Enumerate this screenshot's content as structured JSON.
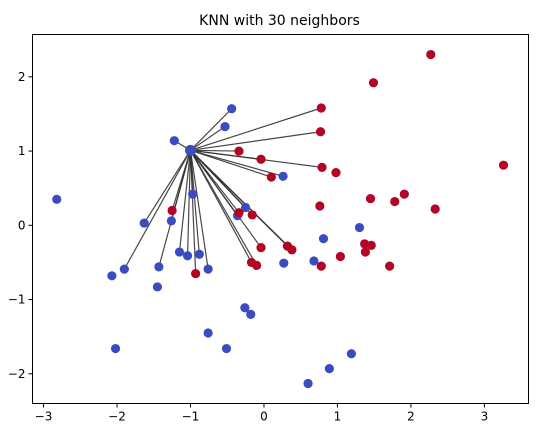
{
  "chart_data": {
    "type": "scatter",
    "title": "KNN with 30 neighbors",
    "xlabel": "",
    "ylabel": "",
    "xlim": [
      -3.15,
      3.6
    ],
    "ylim": [
      -2.4,
      2.57
    ],
    "xticks": [
      -3,
      -2,
      -1,
      0,
      1,
      2,
      3
    ],
    "yticks": [
      -2,
      -1,
      0,
      1,
      2
    ],
    "xtick_labels": [
      "−3",
      "−2",
      "−1",
      "0",
      "1",
      "2",
      "3"
    ],
    "ytick_labels": [
      "−2",
      "−1",
      "0",
      "1",
      "2"
    ],
    "grid": false,
    "colors": {
      "class_0": "#3a4cc0",
      "class_1": "#b40426",
      "line": "#333333"
    },
    "query_point": {
      "x": -1.0,
      "y": 1.01,
      "class": "class_0"
    },
    "points": [
      {
        "x": -2.82,
        "y": 0.35,
        "c": 0
      },
      {
        "x": -2.07,
        "y": -0.68,
        "c": 0
      },
      {
        "x": -1.9,
        "y": -0.59,
        "c": 0
      },
      {
        "x": -2.02,
        "y": -1.66,
        "c": 0
      },
      {
        "x": -1.63,
        "y": 0.03,
        "c": 0
      },
      {
        "x": -1.43,
        "y": -0.56,
        "c": 0
      },
      {
        "x": -1.45,
        "y": -0.83,
        "c": 0
      },
      {
        "x": -1.22,
        "y": 1.14,
        "c": 0
      },
      {
        "x": -1.26,
        "y": 0.06,
        "c": 0
      },
      {
        "x": -1.15,
        "y": -0.36,
        "c": 0
      },
      {
        "x": -1.04,
        "y": -0.41,
        "c": 0
      },
      {
        "x": -0.97,
        "y": 0.42,
        "c": 0
      },
      {
        "x": -0.88,
        "y": -0.39,
        "c": 0
      },
      {
        "x": -0.76,
        "y": -0.59,
        "c": 0
      },
      {
        "x": -0.76,
        "y": -1.45,
        "c": 0
      },
      {
        "x": -0.53,
        "y": 1.33,
        "c": 0
      },
      {
        "x": -0.44,
        "y": 1.57,
        "c": 0
      },
      {
        "x": -0.51,
        "y": -1.66,
        "c": 0
      },
      {
        "x": -0.36,
        "y": 0.13,
        "c": 0
      },
      {
        "x": -0.25,
        "y": 0.24,
        "c": 0
      },
      {
        "x": -0.26,
        "y": -1.11,
        "c": 0
      },
      {
        "x": -0.18,
        "y": -1.2,
        "c": 0
      },
      {
        "x": 0.26,
        "y": 0.66,
        "c": 0
      },
      {
        "x": 0.27,
        "y": -0.51,
        "c": 0
      },
      {
        "x": 0.68,
        "y": -0.48,
        "c": 0
      },
      {
        "x": 0.81,
        "y": -0.18,
        "c": 0
      },
      {
        "x": 0.6,
        "y": -2.13,
        "c": 0
      },
      {
        "x": 0.89,
        "y": -1.93,
        "c": 0
      },
      {
        "x": 1.19,
        "y": -1.73,
        "c": 0
      },
      {
        "x": 1.3,
        "y": -0.03,
        "c": 0
      },
      {
        "x": -1.25,
        "y": 0.2,
        "c": 1
      },
      {
        "x": -0.93,
        "y": -0.65,
        "c": 1
      },
      {
        "x": -0.34,
        "y": 1.0,
        "c": 1
      },
      {
        "x": -0.34,
        "y": 0.17,
        "c": 1
      },
      {
        "x": -0.16,
        "y": 0.14,
        "c": 1
      },
      {
        "x": -0.04,
        "y": 0.89,
        "c": 1
      },
      {
        "x": 0.1,
        "y": 0.65,
        "c": 1
      },
      {
        "x": -0.04,
        "y": -0.3,
        "c": 1
      },
      {
        "x": -0.17,
        "y": -0.5,
        "c": 1
      },
      {
        "x": -0.1,
        "y": -0.54,
        "c": 1
      },
      {
        "x": 0.32,
        "y": -0.28,
        "c": 1
      },
      {
        "x": 0.38,
        "y": -0.33,
        "c": 1
      },
      {
        "x": 0.78,
        "y": 1.58,
        "c": 1
      },
      {
        "x": 0.77,
        "y": 1.26,
        "c": 1
      },
      {
        "x": 0.79,
        "y": 0.78,
        "c": 1
      },
      {
        "x": 0.98,
        "y": 0.71,
        "c": 1
      },
      {
        "x": 0.76,
        "y": 0.26,
        "c": 1
      },
      {
        "x": 0.78,
        "y": -0.55,
        "c": 1
      },
      {
        "x": 1.04,
        "y": -0.42,
        "c": 1
      },
      {
        "x": 1.37,
        "y": -0.25,
        "c": 1
      },
      {
        "x": 1.38,
        "y": -0.36,
        "c": 1
      },
      {
        "x": 1.46,
        "y": -0.27,
        "c": 1
      },
      {
        "x": 1.45,
        "y": 0.36,
        "c": 1
      },
      {
        "x": 1.49,
        "y": 1.92,
        "c": 1
      },
      {
        "x": 1.71,
        "y": -0.55,
        "c": 1
      },
      {
        "x": 1.78,
        "y": 0.32,
        "c": 1
      },
      {
        "x": 1.91,
        "y": 0.42,
        "c": 1
      },
      {
        "x": 2.27,
        "y": 2.3,
        "c": 1
      },
      {
        "x": 2.33,
        "y": 0.22,
        "c": 1
      },
      {
        "x": 3.26,
        "y": 0.81,
        "c": 1
      }
    ],
    "neighbor_lines": [
      {
        "x": -1.22,
        "y": 1.14
      },
      {
        "x": -0.53,
        "y": 1.33
      },
      {
        "x": -0.44,
        "y": 1.57
      },
      {
        "x": -0.34,
        "y": 1.0
      },
      {
        "x": -0.04,
        "y": 0.89
      },
      {
        "x": 0.1,
        "y": 0.65
      },
      {
        "x": 0.26,
        "y": 0.66
      },
      {
        "x": 0.78,
        "y": 1.58
      },
      {
        "x": 0.77,
        "y": 1.26
      },
      {
        "x": 0.79,
        "y": 0.78
      },
      {
        "x": -0.97,
        "y": 0.42
      },
      {
        "x": -1.25,
        "y": 0.2
      },
      {
        "x": -1.26,
        "y": 0.06
      },
      {
        "x": -1.63,
        "y": 0.03
      },
      {
        "x": -0.36,
        "y": 0.13
      },
      {
        "x": -0.34,
        "y": 0.17
      },
      {
        "x": -0.25,
        "y": 0.24
      },
      {
        "x": -0.16,
        "y": 0.14
      },
      {
        "x": -1.15,
        "y": -0.36
      },
      {
        "x": -1.04,
        "y": -0.41
      },
      {
        "x": -0.88,
        "y": -0.39
      },
      {
        "x": -0.76,
        "y": -0.59
      },
      {
        "x": -0.93,
        "y": -0.65
      },
      {
        "x": -1.43,
        "y": -0.56
      },
      {
        "x": -1.9,
        "y": -0.59
      },
      {
        "x": -0.04,
        "y": -0.3
      },
      {
        "x": -0.17,
        "y": -0.5
      },
      {
        "x": -0.1,
        "y": -0.54
      },
      {
        "x": 0.32,
        "y": -0.28
      },
      {
        "x": 0.38,
        "y": -0.33
      }
    ]
  }
}
